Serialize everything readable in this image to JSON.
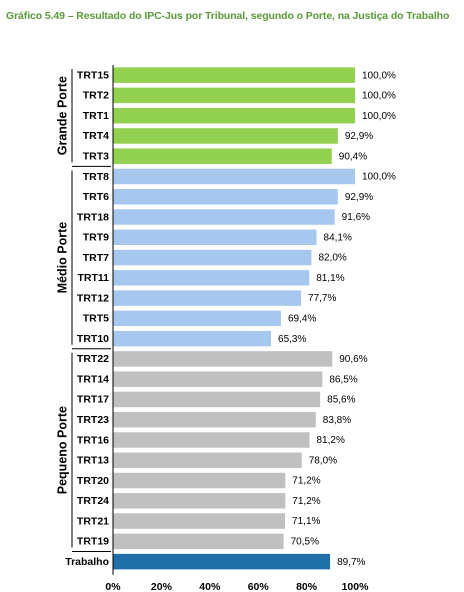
{
  "page_title": "Gráfico 5.49 – Resultado do IPC-Jus por Tribunal, segundo o Porte, na Justiça do Trabalho",
  "chart_data": {
    "type": "bar",
    "orientation": "horizontal",
    "title": "Gráfico 5.49 – Resultado do IPC-Jus por Tribunal, segundo o Porte, na Justiça do Trabalho",
    "xlim": [
      0,
      100
    ],
    "x_ticks": [
      "0%",
      "20%",
      "40%",
      "60%",
      "80%",
      "100%"
    ],
    "grid": false,
    "groups": [
      {
        "name": "Grande Porte",
        "color": "#92d050",
        "categories": [
          "TRT15",
          "TRT2",
          "TRT1",
          "TRT4",
          "TRT3"
        ],
        "values": [
          100.0,
          100.0,
          100.0,
          92.9,
          90.4
        ],
        "labels": [
          "100,0%",
          "100,0%",
          "100,0%",
          "92,9%",
          "90,4%"
        ]
      },
      {
        "name": "Médio Porte",
        "color": "#a6c8ee",
        "categories": [
          "TRT8",
          "TRT6",
          "TRT18",
          "TRT9",
          "TRT7",
          "TRT11",
          "TRT12",
          "TRT5",
          "TRT10"
        ],
        "values": [
          100.0,
          92.9,
          91.6,
          84.1,
          82.0,
          81.1,
          77.7,
          69.4,
          65.3
        ],
        "labels": [
          "100,0%",
          "92,9%",
          "91,6%",
          "84,1%",
          "82,0%",
          "81,1%",
          "77,7%",
          "69,4%",
          "65,3%"
        ]
      },
      {
        "name": "Pequeno Porte",
        "color": "#c0c0c0",
        "categories": [
          "TRT22",
          "TRT14",
          "TRT17",
          "TRT23",
          "TRT16",
          "TRT13",
          "TRT20",
          "TRT24",
          "TRT21",
          "TRT19"
        ],
        "values": [
          90.6,
          86.5,
          85.6,
          83.8,
          81.2,
          78.0,
          71.2,
          71.2,
          71.1,
          70.5
        ],
        "labels": [
          "90,6%",
          "86,5%",
          "85,6%",
          "83,8%",
          "81,2%",
          "78,0%",
          "71,2%",
          "71,2%",
          "71,1%",
          "70,5%"
        ]
      },
      {
        "name": "",
        "color": "#1f6fa8",
        "categories": [
          "Trabalho"
        ],
        "values": [
          89.7
        ],
        "labels": [
          "89,7%"
        ]
      }
    ]
  }
}
